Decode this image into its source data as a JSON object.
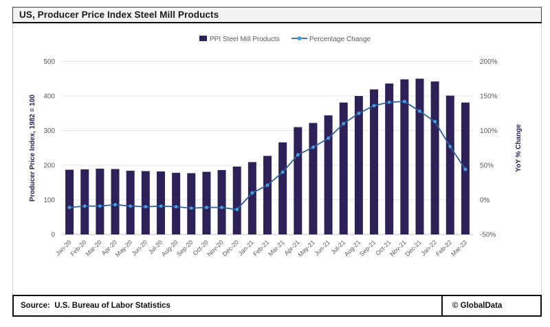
{
  "title": "US, Producer Price Index Steel Mill Products",
  "footer": {
    "source": "Source:  U.S. Bureau of Labor Statistics",
    "brand": "© GlobalData"
  },
  "colors": {
    "bar": "#2e2158",
    "line": "#2e5d9c",
    "marker": "#3fa0dc",
    "grid": "#e4e4e4",
    "axis_line": "#c0c0c0",
    "tick_text": "#595959",
    "axis_title": "#2e2159",
    "title_bg": "#f2f2f2"
  },
  "chart_data": {
    "type": "bar",
    "title": "US, Producer Price Index Steel Mill Products",
    "categories": [
      "Jan-20",
      "Feb-20",
      "Mar-20",
      "Apr-20",
      "May-20",
      "Jun-20",
      "Jul-20",
      "Aug-20",
      "Sep-20",
      "Oct-20",
      "Nov-20",
      "Dec-20",
      "Jan-21",
      "Feb-21",
      "Mar-21",
      "Apr-21",
      "May-21",
      "Jun-21",
      "Jul-21",
      "Aug-21",
      "Sep-21",
      "Oct-21",
      "Nov-21",
      "Dec-21",
      "Jan-22",
      "Feb-22",
      "Mar-22"
    ],
    "series": [
      {
        "name": "PPI Steel Mill Products",
        "type": "bar",
        "axis": "left",
        "values": [
          187,
          188,
          190,
          189,
          184,
          183,
          182,
          178,
          177,
          181,
          186,
          196,
          209,
          227,
          266,
          310,
          322,
          344,
          381,
          400,
          419,
          436,
          448,
          450,
          442,
          401,
          381
        ]
      },
      {
        "name": "Percentage Change",
        "type": "line",
        "axis": "right",
        "values": [
          -11,
          -9,
          -9,
          -7,
          -9,
          -10,
          -9,
          -10,
          -12,
          -11,
          -11,
          -14,
          10,
          21,
          40,
          65,
          76,
          89,
          110,
          125,
          136,
          141,
          142,
          128,
          113,
          77,
          44
        ]
      }
    ],
    "left_axis": {
      "label": "Producer Price Index, 1982 = 100",
      "min": 0,
      "max": 500,
      "ticks": [
        0,
        100,
        200,
        300,
        400,
        500
      ]
    },
    "right_axis": {
      "label": "YoY % Change",
      "min": -50,
      "max": 200,
      "ticks": [
        -50,
        0,
        50,
        100,
        150,
        200
      ],
      "tick_suffix": "%"
    },
    "legend_position": "top",
    "grid": true
  }
}
